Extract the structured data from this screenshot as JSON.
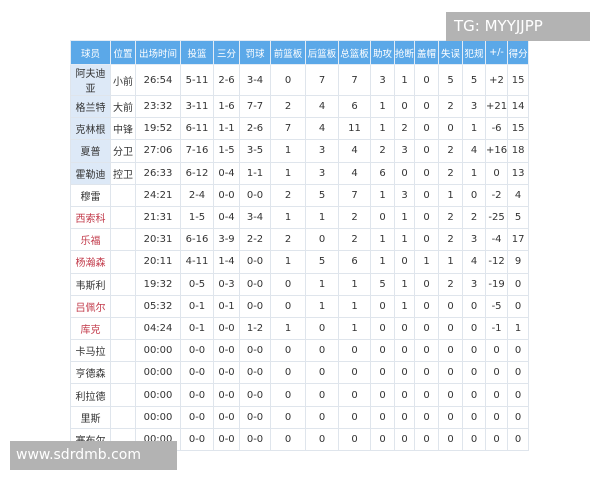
{
  "watermarks": {
    "top_right": "TG: MYYJJPP",
    "bottom_left": "www.sdrdmb.com"
  },
  "colors": {
    "header_bg": "#5ba8e8",
    "starter_bg": "#dde9f7",
    "highlight_name": "#c23a4a"
  },
  "headers": [
    "球员",
    "位置",
    "出场时间",
    "投篮",
    "三分",
    "罚球",
    "前篮板",
    "后篮板",
    "总篮板",
    "助攻",
    "抢断",
    "盖帽",
    "失误",
    "犯规",
    "+/-",
    "得分"
  ],
  "rows": [
    {
      "starter": true,
      "red": false,
      "cells": [
        "阿夫迪亚",
        "小前",
        "26:54",
        "5-11",
        "2-6",
        "3-4",
        "0",
        "7",
        "7",
        "3",
        "1",
        "0",
        "5",
        "5",
        "+2",
        "15"
      ]
    },
    {
      "starter": true,
      "red": false,
      "cells": [
        "格兰特",
        "大前",
        "23:32",
        "3-11",
        "1-6",
        "7-7",
        "2",
        "4",
        "6",
        "1",
        "0",
        "0",
        "2",
        "3",
        "+21",
        "14"
      ]
    },
    {
      "starter": true,
      "red": false,
      "cells": [
        "克林根",
        "中锋",
        "19:52",
        "6-11",
        "1-1",
        "2-6",
        "7",
        "4",
        "11",
        "1",
        "2",
        "0",
        "0",
        "1",
        "-6",
        "15"
      ]
    },
    {
      "starter": true,
      "red": false,
      "cells": [
        "夏普",
        "分卫",
        "27:06",
        "7-16",
        "1-5",
        "3-5",
        "1",
        "3",
        "4",
        "2",
        "3",
        "0",
        "2",
        "4",
        "+16",
        "18"
      ]
    },
    {
      "starter": true,
      "red": false,
      "cells": [
        "霍勒迪",
        "控卫",
        "26:33",
        "6-12",
        "0-4",
        "1-1",
        "1",
        "3",
        "4",
        "6",
        "0",
        "0",
        "2",
        "1",
        "0",
        "13"
      ]
    },
    {
      "starter": false,
      "red": false,
      "cells": [
        "穆雷",
        "",
        "24:21",
        "2-4",
        "0-0",
        "0-0",
        "2",
        "5",
        "7",
        "1",
        "3",
        "0",
        "1",
        "0",
        "-2",
        "4"
      ]
    },
    {
      "starter": false,
      "red": true,
      "cells": [
        "西索科",
        "",
        "21:31",
        "1-5",
        "0-4",
        "3-4",
        "1",
        "1",
        "2",
        "0",
        "1",
        "0",
        "2",
        "2",
        "-25",
        "5"
      ]
    },
    {
      "starter": false,
      "red": true,
      "cells": [
        "乐福",
        "",
        "20:31",
        "6-16",
        "3-9",
        "2-2",
        "2",
        "0",
        "2",
        "1",
        "1",
        "0",
        "2",
        "3",
        "-4",
        "17"
      ]
    },
    {
      "starter": false,
      "red": true,
      "cells": [
        "杨瀚森",
        "",
        "20:11",
        "4-11",
        "1-4",
        "0-0",
        "1",
        "5",
        "6",
        "1",
        "0",
        "1",
        "1",
        "4",
        "-12",
        "9"
      ]
    },
    {
      "starter": false,
      "red": false,
      "cells": [
        "韦斯利",
        "",
        "19:32",
        "0-5",
        "0-3",
        "0-0",
        "0",
        "1",
        "1",
        "5",
        "1",
        "0",
        "2",
        "3",
        "-19",
        "0"
      ]
    },
    {
      "starter": false,
      "red": true,
      "cells": [
        "吕佩尔",
        "",
        "05:32",
        "0-1",
        "0-1",
        "0-0",
        "0",
        "1",
        "1",
        "0",
        "1",
        "0",
        "0",
        "0",
        "-5",
        "0"
      ]
    },
    {
      "starter": false,
      "red": true,
      "cells": [
        "库克",
        "",
        "04:24",
        "0-1",
        "0-0",
        "1-2",
        "1",
        "0",
        "1",
        "0",
        "0",
        "0",
        "0",
        "0",
        "-1",
        "1"
      ]
    },
    {
      "starter": false,
      "red": false,
      "cells": [
        "卡马拉",
        "",
        "00:00",
        "0-0",
        "0-0",
        "0-0",
        "0",
        "0",
        "0",
        "0",
        "0",
        "0",
        "0",
        "0",
        "0",
        "0"
      ]
    },
    {
      "starter": false,
      "red": false,
      "cells": [
        "亨德森",
        "",
        "00:00",
        "0-0",
        "0-0",
        "0-0",
        "0",
        "0",
        "0",
        "0",
        "0",
        "0",
        "0",
        "0",
        "0",
        "0"
      ]
    },
    {
      "starter": false,
      "red": false,
      "cells": [
        "利拉德",
        "",
        "00:00",
        "0-0",
        "0-0",
        "0-0",
        "0",
        "0",
        "0",
        "0",
        "0",
        "0",
        "0",
        "0",
        "0",
        "0"
      ]
    },
    {
      "starter": false,
      "red": false,
      "cells": [
        "里斯",
        "",
        "00:00",
        "0-0",
        "0-0",
        "0-0",
        "0",
        "0",
        "0",
        "0",
        "0",
        "0",
        "0",
        "0",
        "0",
        "0"
      ]
    },
    {
      "starter": false,
      "red": false,
      "cells": [
        "塞布尔",
        "",
        "00:00",
        "0-0",
        "0-0",
        "0-0",
        "0",
        "0",
        "0",
        "0",
        "0",
        "0",
        "0",
        "0",
        "0",
        "0"
      ]
    }
  ]
}
